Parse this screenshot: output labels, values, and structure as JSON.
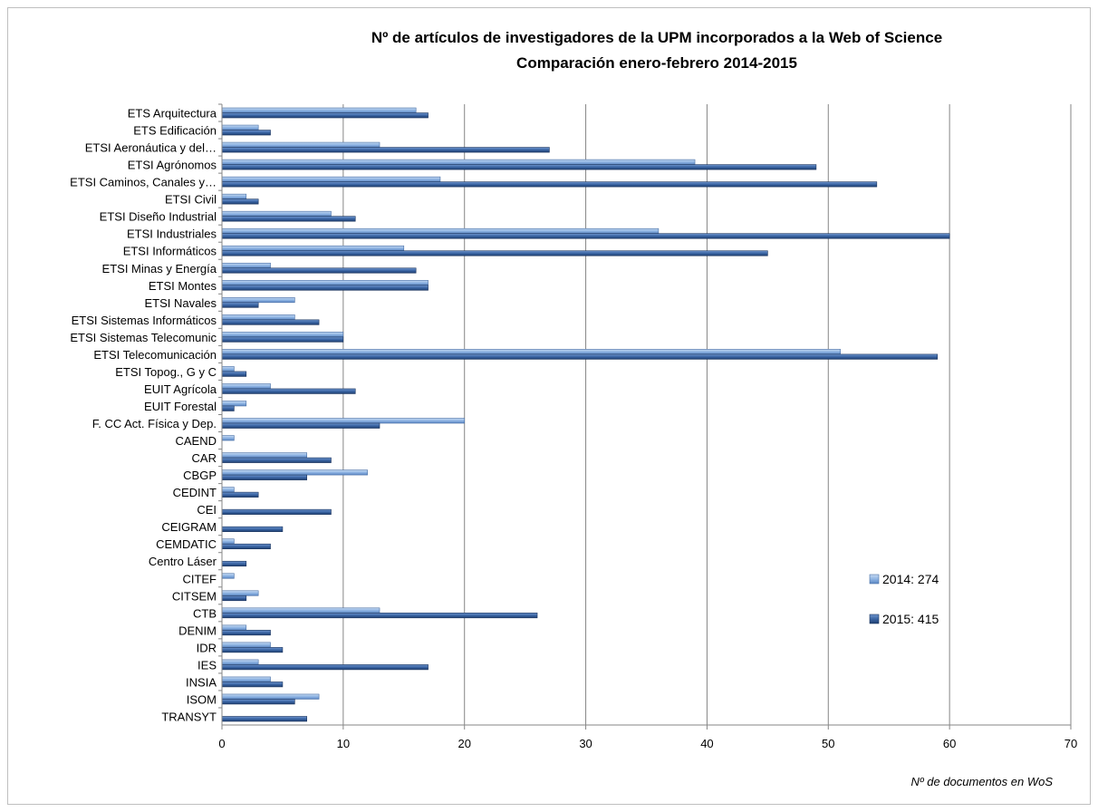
{
  "chart_data": {
    "type": "bar",
    "orientation": "horizontal",
    "title": "Nº de artículos de investigadores de la UPM incorporados a la Web of Science",
    "subtitle": "Comparación enero-febrero 2014-2015",
    "xlabel": "Nº de documentos en WoS",
    "ylabel": "",
    "xlim": [
      0,
      70
    ],
    "xticks": [
      0,
      10,
      20,
      30,
      40,
      50,
      60,
      70
    ],
    "grid": true,
    "legend_position": "right",
    "categories": [
      "ETS Arquitectura",
      "ETS Edificación",
      "ETSI Aeronáutica y del…",
      "ETSI Agrónomos",
      "ETSI Caminos, Canales y…",
      "ETSI Civil",
      "ETSI Diseño Industrial",
      "ETSI Industriales",
      "ETSI Informáticos",
      "ETSI Minas y Energía",
      "ETSI Montes",
      "ETSI Navales",
      "ETSI Sistemas Informáticos",
      "ETSI Sistemas Telecomunic",
      "ETSI Telecomunicación",
      "ETSI Topog., G y C",
      "EUIT Agrícola",
      "EUIT Forestal",
      "F. CC Act. Física y Dep.",
      "CAEND",
      "CAR",
      "CBGP",
      "CEDINT",
      "CEI",
      "CEIGRAM",
      "CEMDATIC",
      "Centro Láser",
      "CITEF",
      "CITSEM",
      "CTB",
      "DENIM",
      "IDR",
      "IES",
      "INSIA",
      "ISOM",
      "TRANSYT"
    ],
    "series": [
      {
        "name": "2014: 274",
        "color": "#8eb4e3",
        "values": [
          16,
          3,
          13,
          39,
          18,
          2,
          9,
          36,
          15,
          4,
          17,
          6,
          6,
          10,
          51,
          1,
          4,
          2,
          20,
          1,
          7,
          12,
          1,
          0,
          0,
          1,
          0,
          1,
          3,
          13,
          2,
          4,
          3,
          4,
          8,
          0
        ]
      },
      {
        "name": "2015: 415",
        "color": "#2e558c",
        "values": [
          17,
          4,
          27,
          49,
          54,
          3,
          11,
          60,
          45,
          16,
          17,
          3,
          8,
          10,
          59,
          2,
          11,
          1,
          13,
          0,
          9,
          7,
          3,
          9,
          5,
          4,
          2,
          0,
          2,
          26,
          4,
          5,
          17,
          5,
          6,
          7
        ]
      }
    ]
  }
}
